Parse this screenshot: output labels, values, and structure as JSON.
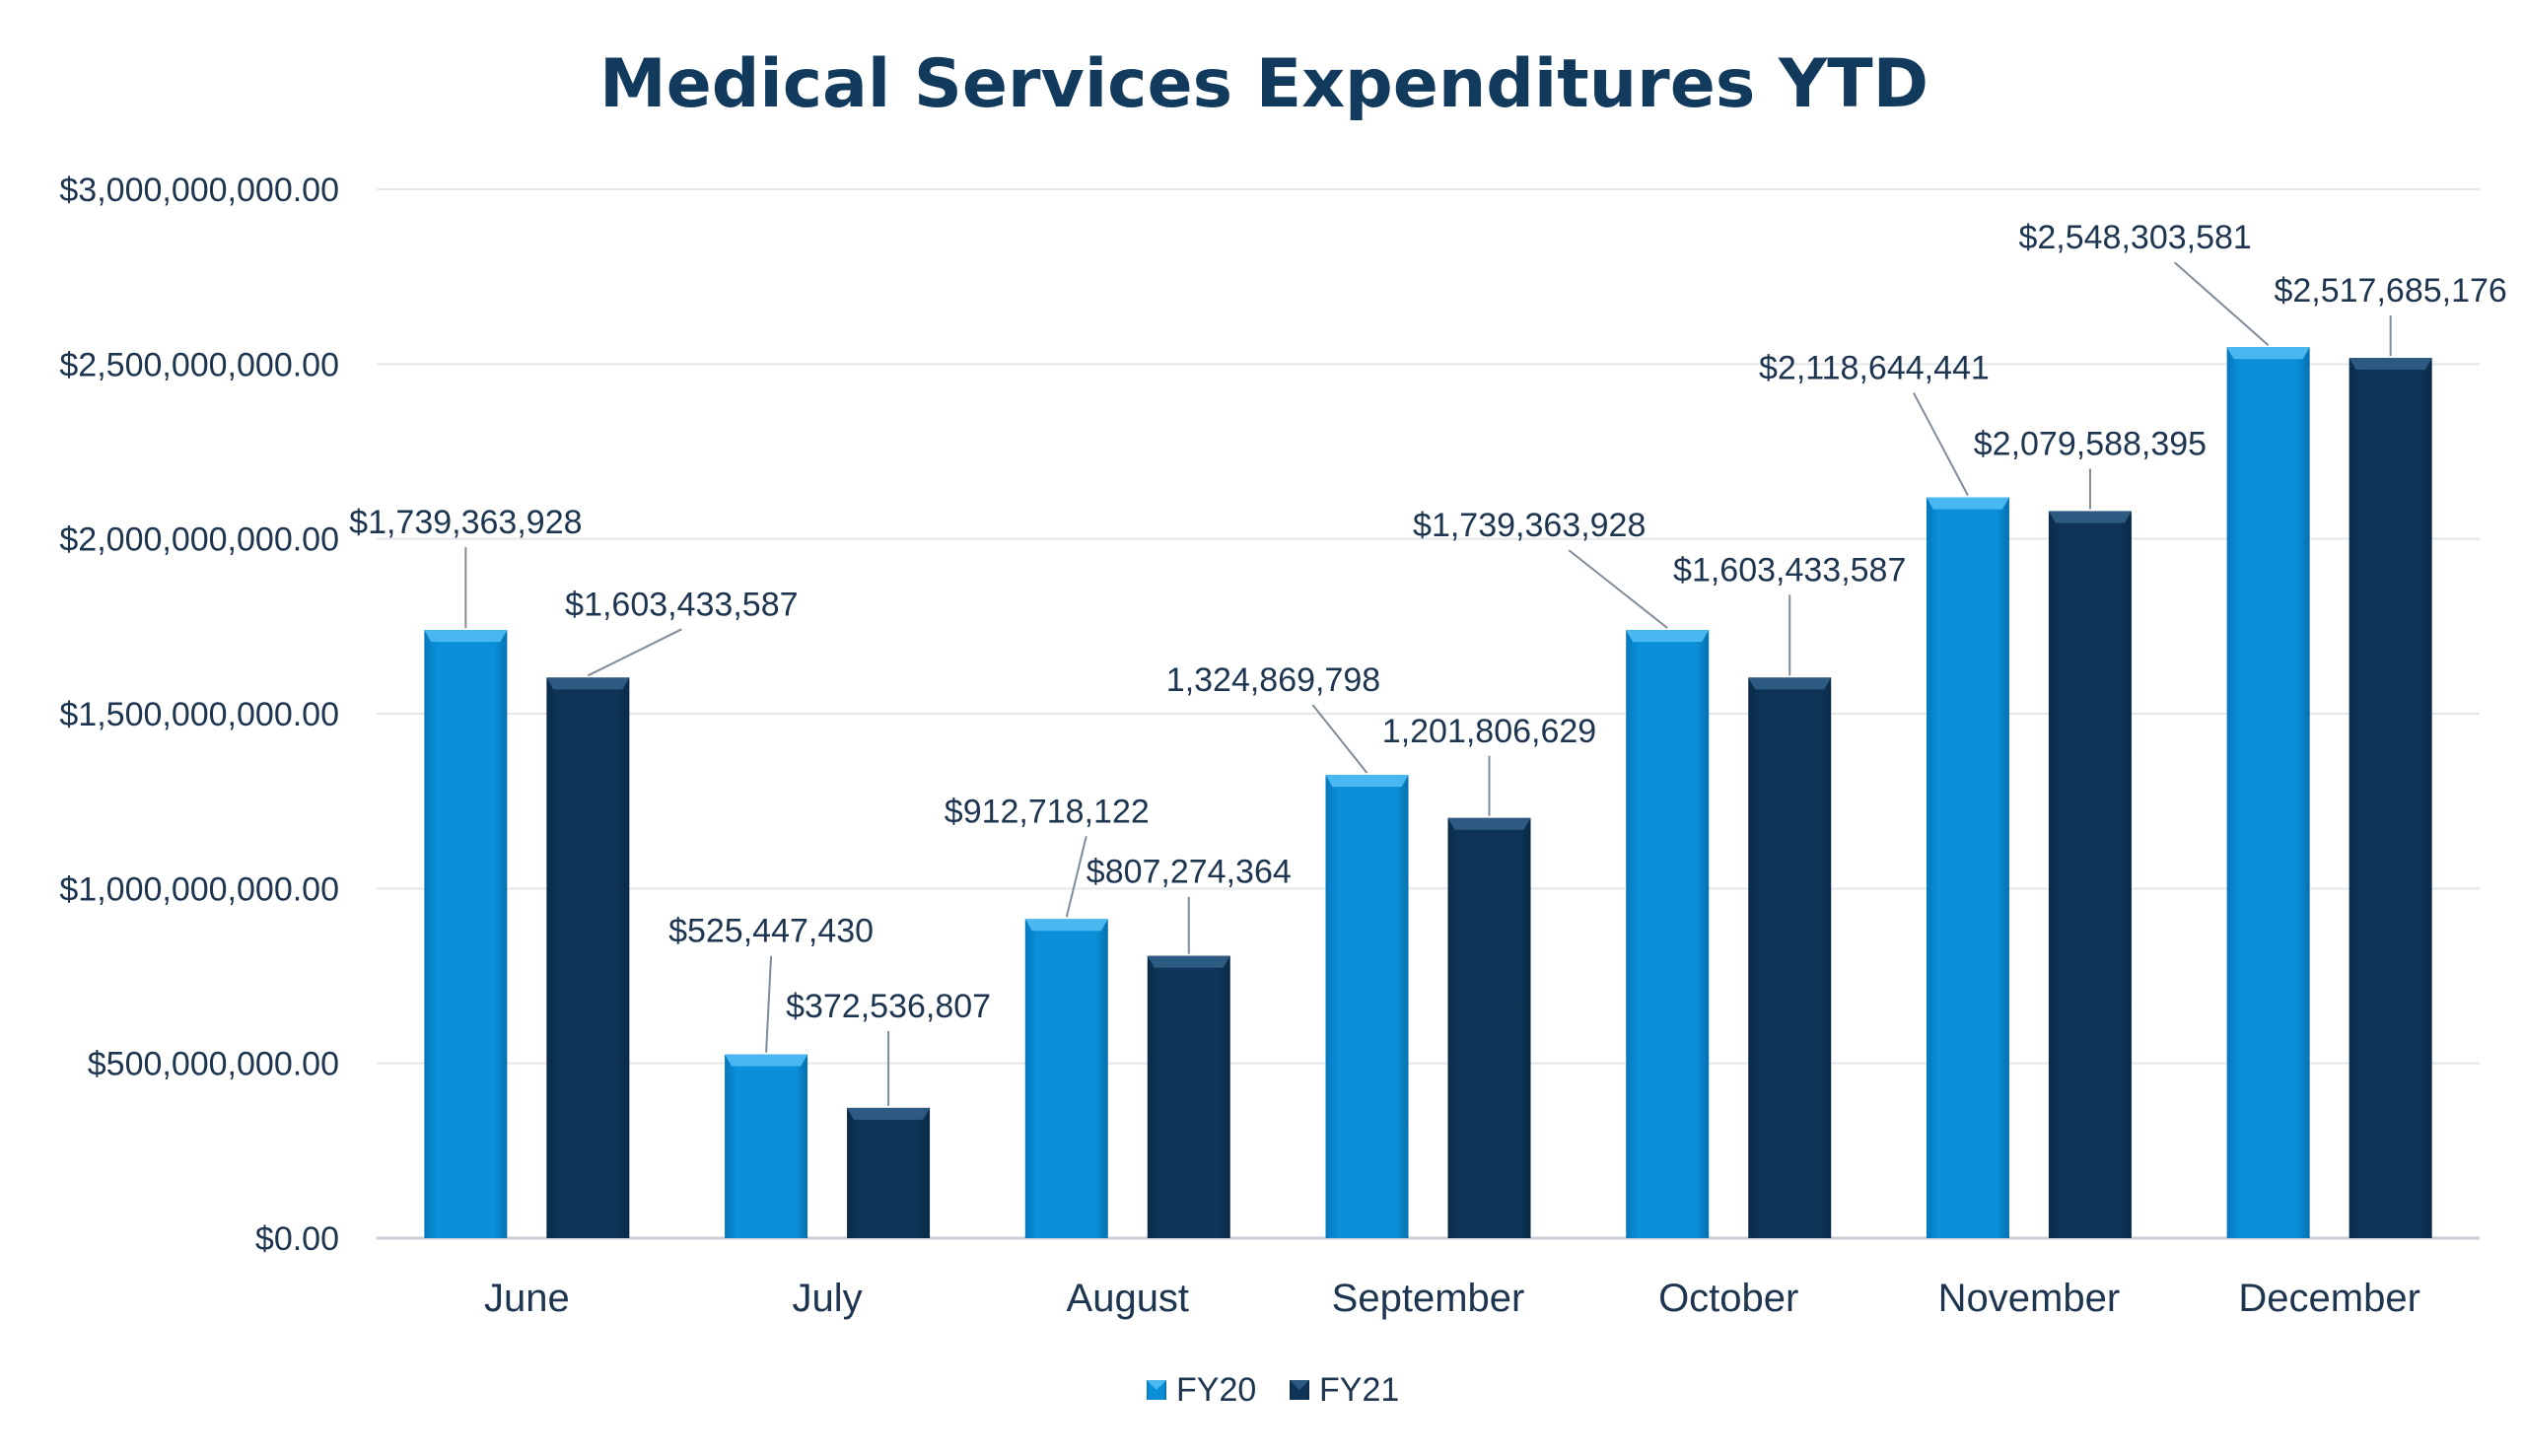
{
  "chart_data": {
    "type": "bar",
    "title": "Medical Services Expenditures YTD",
    "xlabel": "",
    "ylabel": "",
    "ylim": [
      0,
      3000000000
    ],
    "yticks": [
      0,
      500000000,
      1000000000,
      1500000000,
      2000000000,
      2500000000,
      3000000000
    ],
    "ytick_labels": [
      "$0.00",
      "$500,000,000.00",
      "$1,000,000,000.00",
      "$1,500,000,000.00",
      "$2,000,000,000.00",
      "$2,500,000,000.00",
      "$3,000,000,000.00"
    ],
    "grid": true,
    "legend_position": "bottom",
    "categories": [
      "June",
      "July",
      "August",
      "September",
      "October",
      "November",
      "December"
    ],
    "series": [
      {
        "name": "FY20",
        "color": "#0a8fd8",
        "values": [
          1739363928,
          525447430,
          912718122,
          1324869798,
          1739363928,
          2118644441,
          2548303581
        ],
        "labels": [
          "$1,739,363,928",
          "$525,447,430",
          "$912,718,122",
          "1,324,869,798",
          "$1,739,363,928",
          "$2,118,644,441",
          "$2,548,303,581"
        ]
      },
      {
        "name": "FY21",
        "color": "#0e3558",
        "values": [
          1603433587,
          372536807,
          807274364,
          1201806629,
          1603433587,
          2079588395,
          2517685176
        ],
        "labels": [
          "$1,603,433,587",
          "$372,536,807",
          "$807,274,364",
          "1,201,806,629",
          "$1,603,433,587",
          "$2,079,588,395",
          "$2,517,685,176"
        ]
      }
    ]
  }
}
